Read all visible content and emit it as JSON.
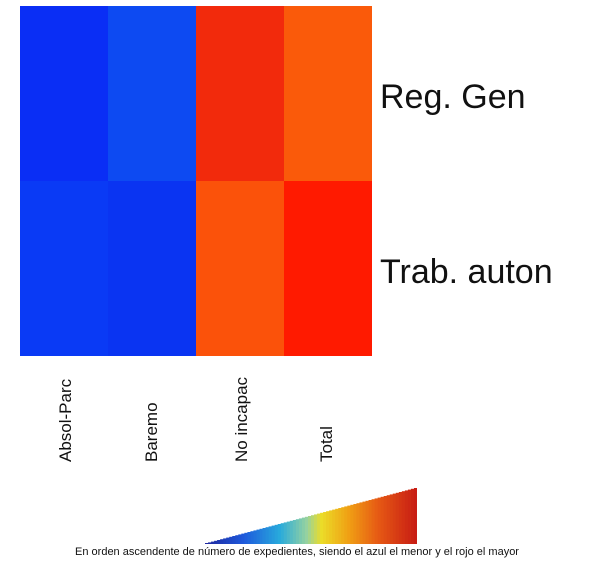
{
  "chart_data": {
    "type": "heatmap",
    "rows": [
      "Reg. Gen",
      "Trab. auton"
    ],
    "columns": [
      "Absol-Parc",
      "Baremo",
      "No incapac",
      "Total"
    ],
    "cell_colors": [
      [
        "#0a2ef5",
        "#0d4af2",
        "#f22a0c",
        "#fa5a0a"
      ],
      [
        "#0a3af5",
        "#0a34f2",
        "#fb520a",
        "#ff1a00"
      ]
    ],
    "color_scale": {
      "low_color": "#1030d0",
      "high_color": "#d03010",
      "caption": "En orden ascendente de número de expedientes, siendo el azul el menor y el rojo el mayor"
    }
  }
}
